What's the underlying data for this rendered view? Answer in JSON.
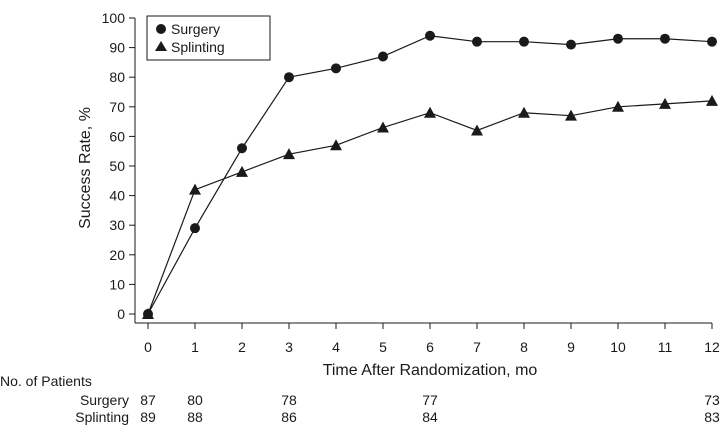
{
  "chart_data": {
    "type": "line",
    "xlabel": "Time After Randomization, mo",
    "ylabel": "Success Rate, %",
    "x": [
      0,
      1,
      2,
      3,
      4,
      5,
      6,
      7,
      8,
      9,
      10,
      11,
      12
    ],
    "xlim": [
      0,
      12
    ],
    "ylim": [
      0,
      100
    ],
    "yticks": [
      0,
      10,
      20,
      30,
      40,
      50,
      60,
      70,
      80,
      90,
      100
    ],
    "grid": false,
    "legend_position": "top-left",
    "series": [
      {
        "name": "Surgery",
        "marker": "circle",
        "values": [
          0,
          29,
          56,
          80,
          83,
          87,
          94,
          92,
          92,
          91,
          93,
          93,
          92
        ]
      },
      {
        "name": "Splinting",
        "marker": "triangle",
        "values": [
          0,
          42,
          48,
          54,
          57,
          63,
          68,
          62,
          68,
          67,
          70,
          71,
          72
        ]
      }
    ],
    "patients_table": {
      "title": "No. of Patients",
      "rows": [
        {
          "label": "Surgery",
          "months": [
            0,
            1,
            3,
            6,
            12
          ],
          "counts": [
            "87",
            "80",
            "78",
            "77",
            "73"
          ]
        },
        {
          "label": "Splinting",
          "months": [
            0,
            1,
            3,
            6,
            12
          ],
          "counts": [
            "89",
            "88",
            "86",
            "84",
            "83"
          ]
        }
      ]
    }
  }
}
